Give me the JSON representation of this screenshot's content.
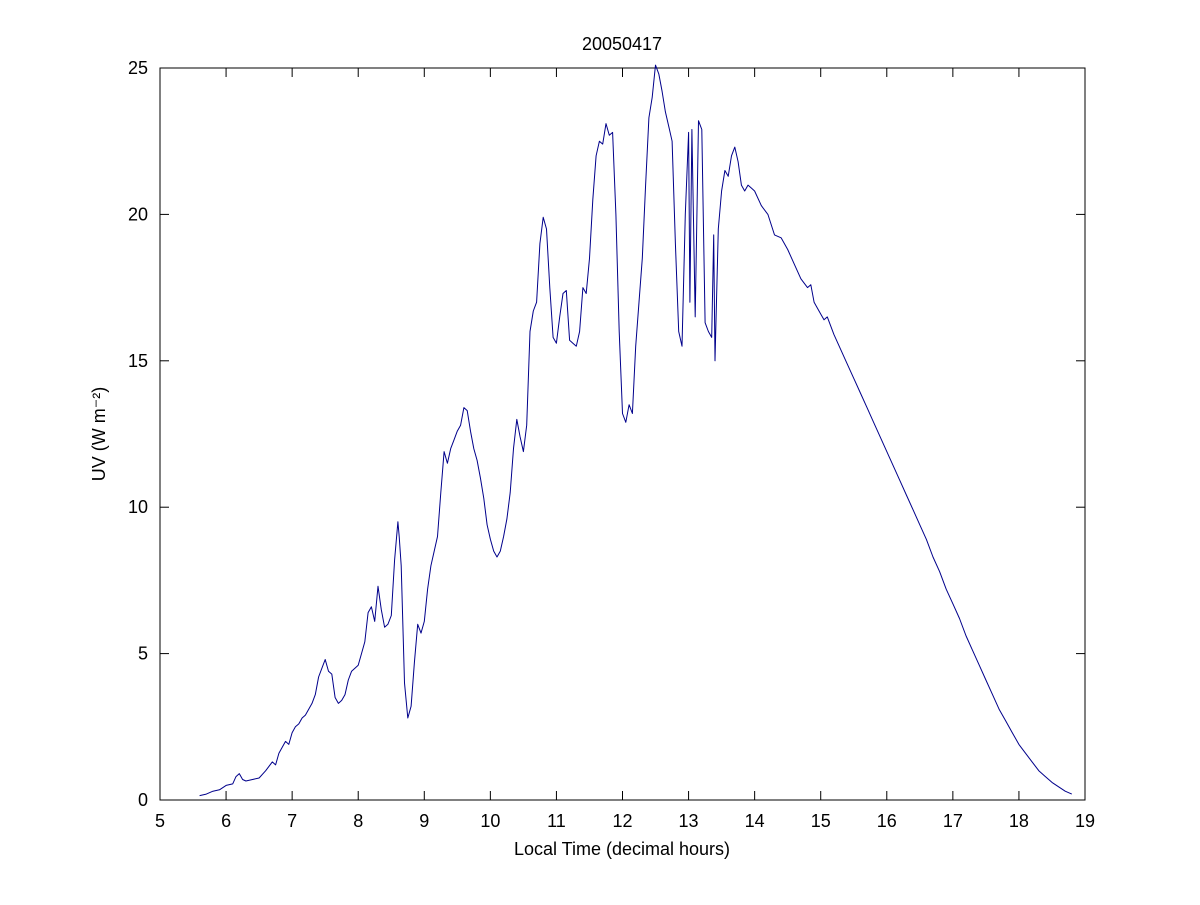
{
  "chart_data": {
    "type": "line",
    "title": "20050417",
    "xlabel": "Local Time (decimal hours)",
    "ylabel": "UV (W m⁻²)",
    "xlim": [
      5,
      19
    ],
    "ylim": [
      0,
      25
    ],
    "xticks": [
      5,
      6,
      7,
      8,
      9,
      10,
      11,
      12,
      13,
      14,
      15,
      16,
      17,
      18,
      19
    ],
    "yticks": [
      0,
      5,
      10,
      15,
      20,
      25
    ],
    "grid": false,
    "legend_position": "none",
    "line_color": "#00008B",
    "axis_color": "#000000",
    "background_color": "#ffffff",
    "series": [
      {
        "name": "UV irradiance",
        "points": [
          [
            5.6,
            0.15
          ],
          [
            5.7,
            0.2
          ],
          [
            5.8,
            0.3
          ],
          [
            5.9,
            0.35
          ],
          [
            6.0,
            0.5
          ],
          [
            6.1,
            0.55
          ],
          [
            6.15,
            0.8
          ],
          [
            6.2,
            0.9
          ],
          [
            6.25,
            0.7
          ],
          [
            6.3,
            0.65
          ],
          [
            6.4,
            0.7
          ],
          [
            6.5,
            0.75
          ],
          [
            6.6,
            1.0
          ],
          [
            6.7,
            1.3
          ],
          [
            6.75,
            1.2
          ],
          [
            6.8,
            1.6
          ],
          [
            6.9,
            2.0
          ],
          [
            6.95,
            1.9
          ],
          [
            7.0,
            2.3
          ],
          [
            7.05,
            2.5
          ],
          [
            7.1,
            2.6
          ],
          [
            7.15,
            2.8
          ],
          [
            7.2,
            2.9
          ],
          [
            7.25,
            3.1
          ],
          [
            7.3,
            3.3
          ],
          [
            7.35,
            3.6
          ],
          [
            7.4,
            4.2
          ],
          [
            7.45,
            4.5
          ],
          [
            7.5,
            4.8
          ],
          [
            7.55,
            4.4
          ],
          [
            7.6,
            4.3
          ],
          [
            7.65,
            3.5
          ],
          [
            7.7,
            3.3
          ],
          [
            7.75,
            3.4
          ],
          [
            7.8,
            3.6
          ],
          [
            7.85,
            4.1
          ],
          [
            7.9,
            4.4
          ],
          [
            7.95,
            4.5
          ],
          [
            8.0,
            4.6
          ],
          [
            8.05,
            5.0
          ],
          [
            8.1,
            5.4
          ],
          [
            8.15,
            6.4
          ],
          [
            8.2,
            6.6
          ],
          [
            8.25,
            6.1
          ],
          [
            8.3,
            7.3
          ],
          [
            8.35,
            6.5
          ],
          [
            8.4,
            5.9
          ],
          [
            8.45,
            6.0
          ],
          [
            8.5,
            6.3
          ],
          [
            8.55,
            8.2
          ],
          [
            8.6,
            9.5
          ],
          [
            8.62,
            9.0
          ],
          [
            8.65,
            8.0
          ],
          [
            8.7,
            4.0
          ],
          [
            8.75,
            2.8
          ],
          [
            8.8,
            3.2
          ],
          [
            8.85,
            4.7
          ],
          [
            8.9,
            6.0
          ],
          [
            8.95,
            5.7
          ],
          [
            9.0,
            6.1
          ],
          [
            9.05,
            7.2
          ],
          [
            9.1,
            8.0
          ],
          [
            9.15,
            8.5
          ],
          [
            9.2,
            9.0
          ],
          [
            9.25,
            10.5
          ],
          [
            9.3,
            11.9
          ],
          [
            9.35,
            11.5
          ],
          [
            9.4,
            12.0
          ],
          [
            9.45,
            12.3
          ],
          [
            9.5,
            12.6
          ],
          [
            9.55,
            12.8
          ],
          [
            9.6,
            13.4
          ],
          [
            9.65,
            13.3
          ],
          [
            9.7,
            12.6
          ],
          [
            9.75,
            12.0
          ],
          [
            9.8,
            11.6
          ],
          [
            9.85,
            11.0
          ],
          [
            9.9,
            10.3
          ],
          [
            9.95,
            9.4
          ],
          [
            10.0,
            8.9
          ],
          [
            10.05,
            8.5
          ],
          [
            10.1,
            8.3
          ],
          [
            10.15,
            8.5
          ],
          [
            10.2,
            9.0
          ],
          [
            10.25,
            9.6
          ],
          [
            10.3,
            10.5
          ],
          [
            10.35,
            12.0
          ],
          [
            10.4,
            13.0
          ],
          [
            10.45,
            12.4
          ],
          [
            10.5,
            11.9
          ],
          [
            10.55,
            12.8
          ],
          [
            10.6,
            16.0
          ],
          [
            10.65,
            16.7
          ],
          [
            10.7,
            17.0
          ],
          [
            10.75,
            19.0
          ],
          [
            10.8,
            19.9
          ],
          [
            10.85,
            19.5
          ],
          [
            10.9,
            17.5
          ],
          [
            10.95,
            15.8
          ],
          [
            11.0,
            15.6
          ],
          [
            11.05,
            16.5
          ],
          [
            11.1,
            17.3
          ],
          [
            11.15,
            17.4
          ],
          [
            11.2,
            15.7
          ],
          [
            11.25,
            15.6
          ],
          [
            11.3,
            15.5
          ],
          [
            11.35,
            16.0
          ],
          [
            11.4,
            17.5
          ],
          [
            11.45,
            17.3
          ],
          [
            11.5,
            18.5
          ],
          [
            11.55,
            20.5
          ],
          [
            11.6,
            22.0
          ],
          [
            11.65,
            22.5
          ],
          [
            11.7,
            22.4
          ],
          [
            11.75,
            23.1
          ],
          [
            11.8,
            22.7
          ],
          [
            11.85,
            22.8
          ],
          [
            11.9,
            20.0
          ],
          [
            11.95,
            16.0
          ],
          [
            12.0,
            13.2
          ],
          [
            12.05,
            12.9
          ],
          [
            12.1,
            13.5
          ],
          [
            12.15,
            13.2
          ],
          [
            12.2,
            15.5
          ],
          [
            12.25,
            17.0
          ],
          [
            12.3,
            18.5
          ],
          [
            12.35,
            21.0
          ],
          [
            12.4,
            23.3
          ],
          [
            12.45,
            24.0
          ],
          [
            12.5,
            25.1
          ],
          [
            12.55,
            24.8
          ],
          [
            12.6,
            24.2
          ],
          [
            12.65,
            23.5
          ],
          [
            12.7,
            23.0
          ],
          [
            12.75,
            22.5
          ],
          [
            12.8,
            19.0
          ],
          [
            12.85,
            16.0
          ],
          [
            12.9,
            15.5
          ],
          [
            12.95,
            20.0
          ],
          [
            13.0,
            22.8
          ],
          [
            13.02,
            17.0
          ],
          [
            13.05,
            22.9
          ],
          [
            13.1,
            16.5
          ],
          [
            13.15,
            23.2
          ],
          [
            13.2,
            22.9
          ],
          [
            13.25,
            16.3
          ],
          [
            13.3,
            16.0
          ],
          [
            13.35,
            15.8
          ],
          [
            13.38,
            19.3
          ],
          [
            13.4,
            15.0
          ],
          [
            13.45,
            19.5
          ],
          [
            13.5,
            20.8
          ],
          [
            13.55,
            21.5
          ],
          [
            13.6,
            21.3
          ],
          [
            13.65,
            22.0
          ],
          [
            13.7,
            22.3
          ],
          [
            13.75,
            21.8
          ],
          [
            13.8,
            21.0
          ],
          [
            13.85,
            20.8
          ],
          [
            13.9,
            21.0
          ],
          [
            13.95,
            20.9
          ],
          [
            14.0,
            20.8
          ],
          [
            14.1,
            20.3
          ],
          [
            14.2,
            20.0
          ],
          [
            14.3,
            19.3
          ],
          [
            14.4,
            19.2
          ],
          [
            14.5,
            18.8
          ],
          [
            14.6,
            18.3
          ],
          [
            14.7,
            17.8
          ],
          [
            14.8,
            17.5
          ],
          [
            14.85,
            17.6
          ],
          [
            14.9,
            17.0
          ],
          [
            15.0,
            16.6
          ],
          [
            15.05,
            16.4
          ],
          [
            15.1,
            16.5
          ],
          [
            15.15,
            16.2
          ],
          [
            15.2,
            15.9
          ],
          [
            15.3,
            15.4
          ],
          [
            15.4,
            14.9
          ],
          [
            15.5,
            14.4
          ],
          [
            15.6,
            13.9
          ],
          [
            15.7,
            13.4
          ],
          [
            15.8,
            12.9
          ],
          [
            15.9,
            12.4
          ],
          [
            16.0,
            11.9
          ],
          [
            16.1,
            11.4
          ],
          [
            16.2,
            10.9
          ],
          [
            16.3,
            10.4
          ],
          [
            16.4,
            9.9
          ],
          [
            16.5,
            9.4
          ],
          [
            16.6,
            8.9
          ],
          [
            16.7,
            8.3
          ],
          [
            16.8,
            7.8
          ],
          [
            16.9,
            7.2
          ],
          [
            17.0,
            6.7
          ],
          [
            17.1,
            6.2
          ],
          [
            17.2,
            5.6
          ],
          [
            17.3,
            5.1
          ],
          [
            17.4,
            4.6
          ],
          [
            17.5,
            4.1
          ],
          [
            17.6,
            3.6
          ],
          [
            17.7,
            3.1
          ],
          [
            17.8,
            2.7
          ],
          [
            17.9,
            2.3
          ],
          [
            18.0,
            1.9
          ],
          [
            18.1,
            1.6
          ],
          [
            18.2,
            1.3
          ],
          [
            18.3,
            1.0
          ],
          [
            18.4,
            0.8
          ],
          [
            18.5,
            0.6
          ],
          [
            18.6,
            0.45
          ],
          [
            18.7,
            0.3
          ],
          [
            18.8,
            0.2
          ]
        ]
      }
    ]
  }
}
